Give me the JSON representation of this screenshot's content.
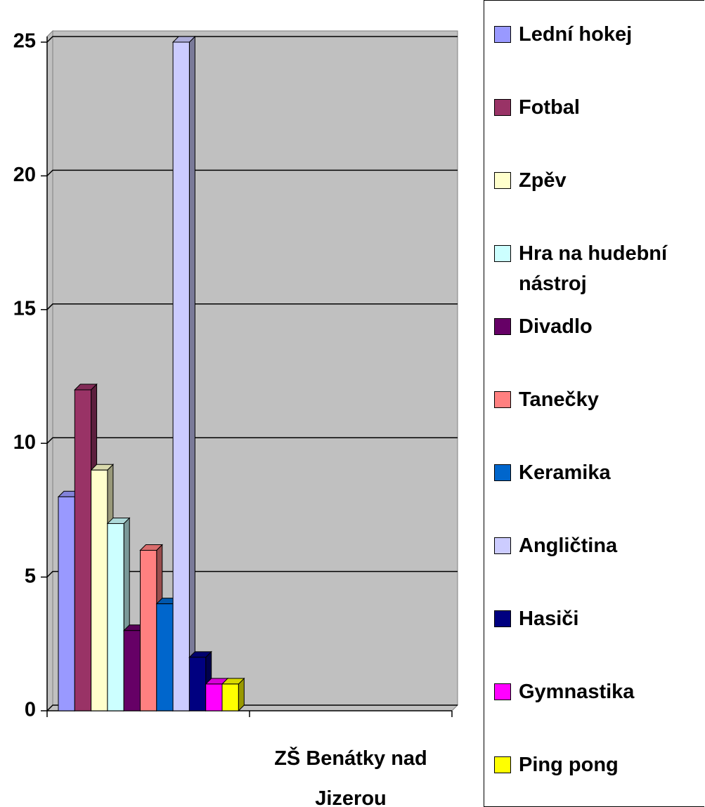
{
  "chart_data": {
    "type": "bar",
    "categories": [
      "ZŠ Benátky nad Jizerou"
    ],
    "series": [
      {
        "name": "Lední hokej",
        "color": "#9999ff",
        "values": [
          8
        ]
      },
      {
        "name": "Fotbal",
        "color": "#993366",
        "values": [
          12
        ]
      },
      {
        "name": "Zpěv",
        "color": "#ffffcc",
        "values": [
          9
        ]
      },
      {
        "name": "Hra na hudební nástroj",
        "color": "#ccffff",
        "values": [
          7
        ]
      },
      {
        "name": "Divadlo",
        "color": "#660066",
        "values": [
          3
        ]
      },
      {
        "name": "Tanečky",
        "color": "#ff8080",
        "values": [
          6
        ]
      },
      {
        "name": "Keramika",
        "color": "#0066cc",
        "values": [
          4
        ]
      },
      {
        "name": "Angličtina",
        "color": "#ccccff",
        "values": [
          25
        ]
      },
      {
        "name": "Hasiči",
        "color": "#000080",
        "values": [
          2
        ]
      },
      {
        "name": "Gymnastika",
        "color": "#ff00ff",
        "values": [
          1
        ]
      },
      {
        "name": "Ping pong",
        "color": "#ffff00",
        "values": [
          1
        ]
      }
    ],
    "ylim": [
      0,
      25
    ],
    "yticks": [
      0,
      5,
      10,
      15,
      20,
      25
    ],
    "grid": true,
    "legend": "right"
  }
}
